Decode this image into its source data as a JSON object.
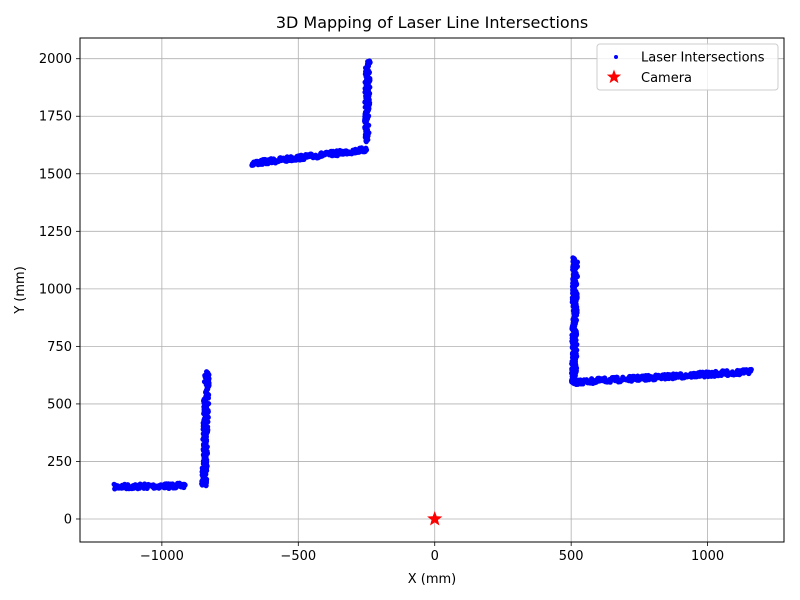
{
  "chart_data": {
    "type": "scatter",
    "title": "3D Mapping of Laser Line Intersections",
    "xlabel": "X (mm)",
    "ylabel": "Y (mm)",
    "xlim": [
      -1300,
      1280
    ],
    "ylim": [
      -100,
      2090
    ],
    "xticks": [
      -1000,
      -500,
      0,
      500,
      1000
    ],
    "yticks": [
      0,
      250,
      500,
      750,
      1000,
      1250,
      1500,
      1750,
      2000
    ],
    "xtick_labels": [
      "−1000",
      "−500",
      "0",
      "500",
      "1000"
    ],
    "ytick_labels": [
      "0",
      "250",
      "500",
      "750",
      "1000",
      "1250",
      "1500",
      "1750",
      "2000"
    ],
    "grid": true,
    "legend_position": "top-right",
    "series": [
      {
        "name": "Laser Intersections",
        "color": "#0000ff",
        "marker": "dot",
        "segments": [
          {
            "x0": -1175,
            "y0": 140,
            "x1": -915,
            "y1": 145
          },
          {
            "x0": -845,
            "y0": 145,
            "x1": -835,
            "y1": 640
          },
          {
            "x0": -670,
            "y0": 1545,
            "x1": -250,
            "y1": 1605
          },
          {
            "x0": -250,
            "y0": 1640,
            "x1": -245,
            "y1": 1990
          },
          {
            "x0": 510,
            "y0": 585,
            "x1": 515,
            "y1": 1135
          },
          {
            "x0": 520,
            "y0": 595,
            "x1": 1160,
            "y1": 640
          }
        ]
      },
      {
        "name": "Camera",
        "color": "#ff0000",
        "marker": "star",
        "points": [
          {
            "x": 0,
            "y": 0
          }
        ]
      }
    ]
  }
}
